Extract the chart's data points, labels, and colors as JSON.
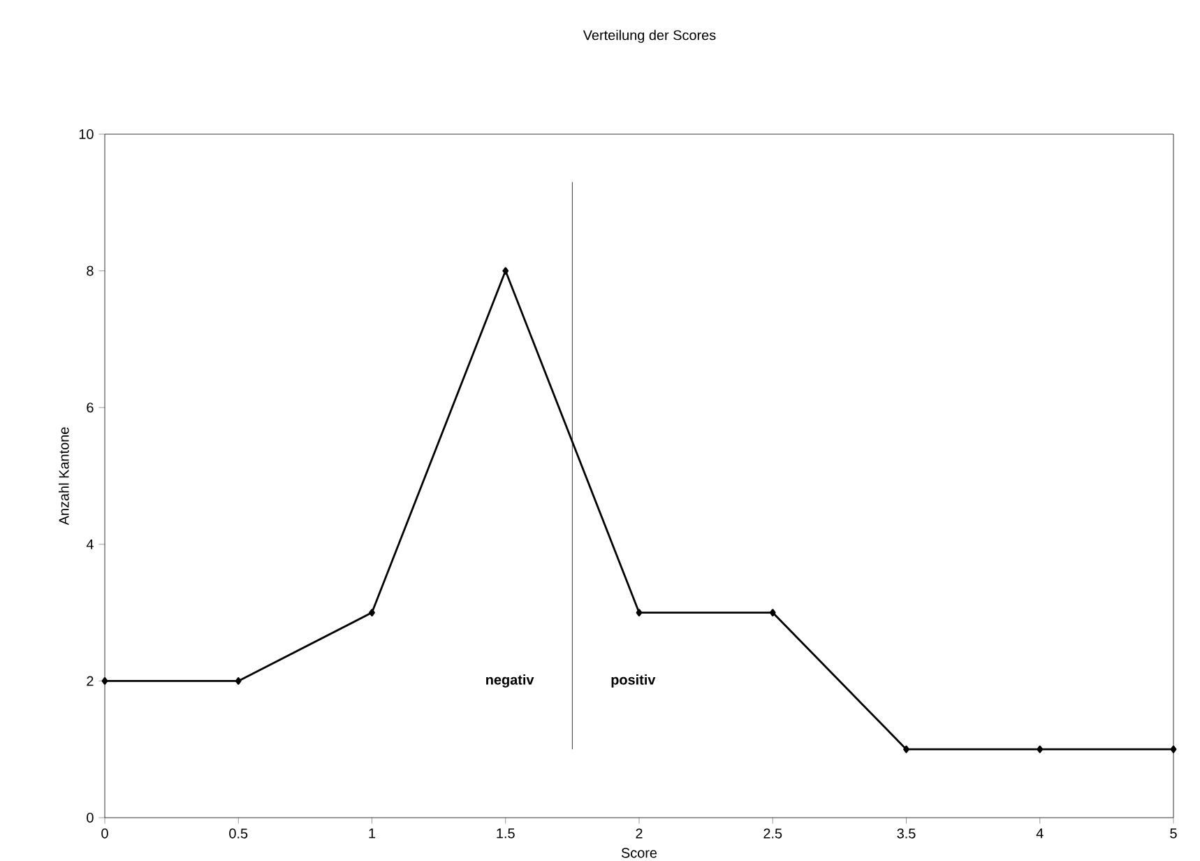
{
  "chart_data": {
    "type": "line",
    "title": "Verteilung der Scores",
    "xlabel": "Score",
    "ylabel": "Anzahl Kantone",
    "categories": [
      "0",
      "0.5",
      "1",
      "1.5",
      "2",
      "2.5",
      "3.5",
      "4",
      "5"
    ],
    "values": [
      2,
      2,
      3,
      8,
      3,
      3,
      1,
      1,
      1
    ],
    "color": "#000000",
    "marker": "diamond",
    "line_style": "solid",
    "ylim": [
      0,
      10
    ],
    "yticks": [
      0,
      2,
      4,
      6,
      8,
      10
    ],
    "annotations": [
      "negativ",
      "positiv"
    ]
  }
}
